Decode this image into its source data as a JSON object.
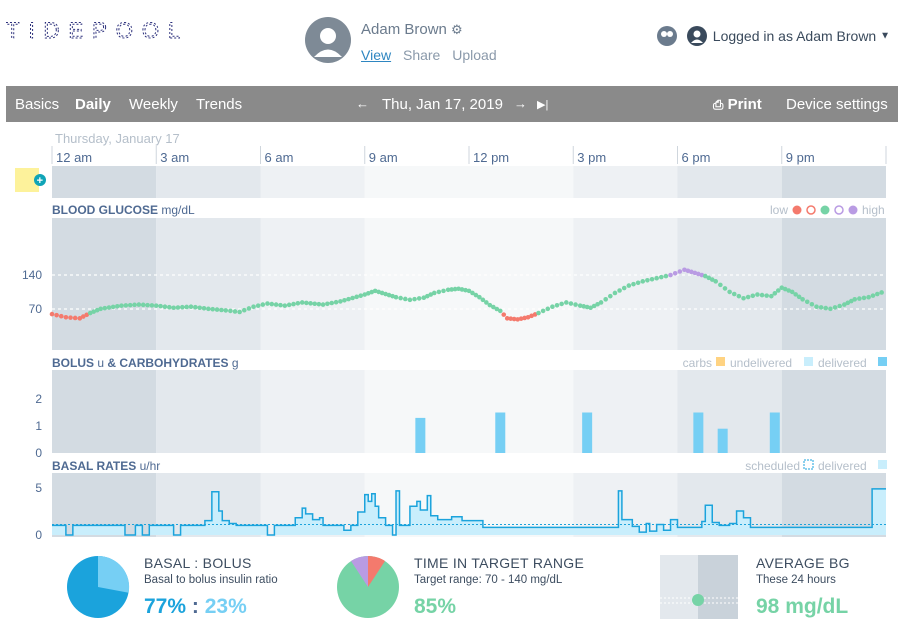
{
  "app": {
    "logo_text": "TIDEPOOL"
  },
  "patient": {
    "name": "Adam Brown",
    "links": {
      "view": "View",
      "share": "Share",
      "upload": "Upload"
    }
  },
  "login": {
    "text": "Logged in as Adam Brown"
  },
  "nav": {
    "tabs": [
      "Basics",
      "Daily",
      "Weekly",
      "Trends"
    ],
    "active_tab": "Daily",
    "date": "Thu, Jan 17, 2019",
    "print": "Print",
    "device_settings": "Device settings"
  },
  "day_label": "Thursday, January 17",
  "time_ticks": [
    "12 am",
    "3 am",
    "6 am",
    "9 am",
    "12 pm",
    "3 pm",
    "6 pm",
    "9 pm"
  ],
  "colors": {
    "low": "#f47a6d",
    "target": "#76d3a6",
    "high": "#b99be3",
    "bolus": "#76cff4",
    "basal": "#1ba3dc",
    "carbs": "#ffd382",
    "nav_bg": "#8a8a8a"
  },
  "bg_panel": {
    "title": "BLOOD GLUCOSE",
    "unit": "mg/dL",
    "legend_low": "low",
    "legend_high": "high",
    "ticks": [
      "140",
      "70"
    ]
  },
  "bolus_panel": {
    "title": "BOLUS",
    "unit_u": "u",
    "and": "& CARBOHYDRATES",
    "unit_g": "g",
    "legend": [
      "carbs",
      "undelivered",
      "delivered"
    ],
    "ticks": [
      "2",
      "1",
      "0"
    ]
  },
  "basal_panel": {
    "title": "BASAL RATES",
    "unit": "u/hr",
    "legend": [
      "scheduled",
      "delivered"
    ],
    "ticks": [
      "5",
      "0"
    ]
  },
  "chart_data": {
    "type": "line",
    "x_unit": "hour of day",
    "bg": {
      "ylim": [
        0,
        250
      ],
      "target_range": [
        70,
        140
      ],
      "points": [
        [
          0.0,
          68
        ],
        [
          0.4,
          62
        ],
        [
          0.8,
          60
        ],
        [
          1.1,
          70
        ],
        [
          1.4,
          78
        ],
        [
          2.0,
          84
        ],
        [
          2.5,
          86
        ],
        [
          3.0,
          84
        ],
        [
          3.5,
          80
        ],
        [
          4.0,
          82
        ],
        [
          4.5,
          78
        ],
        [
          5.0,
          75
        ],
        [
          5.4,
          72
        ],
        [
          5.8,
          82
        ],
        [
          6.2,
          88
        ],
        [
          6.7,
          84
        ],
        [
          7.2,
          90
        ],
        [
          7.8,
          86
        ],
        [
          8.3,
          92
        ],
        [
          9.0,
          105
        ],
        [
          9.3,
          112
        ],
        [
          9.6,
          106
        ],
        [
          9.9,
          100
        ],
        [
          10.3,
          95
        ],
        [
          10.7,
          99
        ],
        [
          11.0,
          108
        ],
        [
          11.4,
          114
        ],
        [
          11.7,
          116
        ],
        [
          12.0,
          112
        ],
        [
          12.3,
          100
        ],
        [
          12.6,
          85
        ],
        [
          12.9,
          74
        ],
        [
          13.1,
          60
        ],
        [
          13.4,
          58
        ],
        [
          13.7,
          62
        ],
        [
          14.0,
          70
        ],
        [
          14.4,
          82
        ],
        [
          14.8,
          90
        ],
        [
          15.2,
          84
        ],
        [
          15.5,
          80
        ],
        [
          15.8,
          90
        ],
        [
          16.2,
          108
        ],
        [
          16.6,
          122
        ],
        [
          17.0,
          130
        ],
        [
          17.4,
          136
        ],
        [
          17.8,
          142
        ],
        [
          18.2,
          152
        ],
        [
          18.5,
          146
        ],
        [
          18.8,
          140
        ],
        [
          19.1,
          130
        ],
        [
          19.5,
          110
        ],
        [
          19.9,
          98
        ],
        [
          20.3,
          105
        ],
        [
          20.7,
          102
        ],
        [
          21.0,
          118
        ],
        [
          21.3,
          110
        ],
        [
          21.6,
          96
        ],
        [
          22.0,
          82
        ],
        [
          22.4,
          78
        ],
        [
          22.8,
          86
        ],
        [
          23.1,
          96
        ],
        [
          23.5,
          100
        ],
        [
          24.0,
          112
        ]
      ]
    },
    "bolus": {
      "ylim": [
        0,
        3
      ],
      "events": [
        [
          10.6,
          1.3
        ],
        [
          12.9,
          1.5
        ],
        [
          15.4,
          1.5
        ],
        [
          18.6,
          1.5
        ],
        [
          19.3,
          0.9
        ],
        [
          20.8,
          1.5
        ]
      ]
    },
    "basal": {
      "ylim": [
        0,
        5
      ],
      "scheduled_rate": 1.1,
      "delivered": [
        [
          0.0,
          1.0
        ],
        [
          0.4,
          0
        ],
        [
          0.6,
          1.0
        ],
        [
          2.1,
          0
        ],
        [
          2.4,
          1.0
        ],
        [
          2.6,
          0
        ],
        [
          2.8,
          1.0
        ],
        [
          3.5,
          0
        ],
        [
          3.7,
          1.0
        ],
        [
          4.4,
          1.5
        ],
        [
          4.6,
          4.5
        ],
        [
          4.8,
          2.5
        ],
        [
          4.9,
          1.5
        ],
        [
          5.1,
          1.2
        ],
        [
          5.3,
          1.0
        ],
        [
          6.2,
          0
        ],
        [
          6.4,
          1.0
        ],
        [
          7.0,
          1.8
        ],
        [
          7.2,
          2.8
        ],
        [
          7.3,
          2.2
        ],
        [
          7.5,
          1.6
        ],
        [
          7.7,
          1.8
        ],
        [
          7.8,
          1.0
        ],
        [
          8.1,
          1.0
        ],
        [
          8.4,
          0.5
        ],
        [
          8.6,
          1.0
        ],
        [
          8.8,
          2.4
        ],
        [
          9.0,
          4.2
        ],
        [
          9.1,
          3.5
        ],
        [
          9.2,
          4.3
        ],
        [
          9.3,
          3.0
        ],
        [
          9.4,
          1.8
        ],
        [
          9.6,
          1.0
        ],
        [
          9.8,
          0
        ],
        [
          9.9,
          4.6
        ],
        [
          10.0,
          1.0
        ],
        [
          10.3,
          3.0
        ],
        [
          10.5,
          3.5
        ],
        [
          10.6,
          2.6
        ],
        [
          10.8,
          4.1
        ],
        [
          10.9,
          2.0
        ],
        [
          11.1,
          1.6
        ],
        [
          11.5,
          1.9
        ],
        [
          11.8,
          1.5
        ],
        [
          12.4,
          0.8
        ],
        [
          13.3,
          0.8
        ],
        [
          15.2,
          0.8
        ],
        [
          16.3,
          4.6
        ],
        [
          16.4,
          1.6
        ],
        [
          16.7,
          0.9
        ],
        [
          16.9,
          0.3
        ],
        [
          17.1,
          1.2
        ],
        [
          17.2,
          0.4
        ],
        [
          17.4,
          1.1
        ],
        [
          17.6,
          0.5
        ],
        [
          17.8,
          1.6
        ],
        [
          18.0,
          0.8
        ],
        [
          18.4,
          0.8
        ],
        [
          18.7,
          1.4
        ],
        [
          18.8,
          3.1
        ],
        [
          19.0,
          1.3
        ],
        [
          19.2,
          1.0
        ],
        [
          19.5,
          1.2
        ],
        [
          19.7,
          2.5
        ],
        [
          19.9,
          1.8
        ],
        [
          20.1,
          0.8
        ],
        [
          23.5,
          0.8
        ],
        [
          23.6,
          4.8
        ],
        [
          24.0,
          4.8
        ]
      ]
    }
  }
}
